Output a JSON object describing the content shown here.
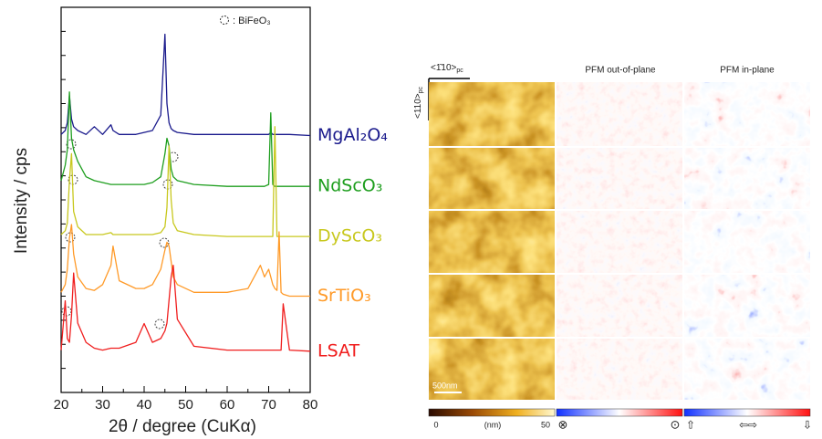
{
  "chart_data": {
    "type": "line",
    "xlabel": "2θ / degree (CuKα)",
    "ylabel": "Intensity / cps",
    "legend_note": ": BiFeO₃",
    "xlim": [
      20,
      80
    ],
    "xticks": [
      20,
      30,
      40,
      50,
      60,
      70,
      80
    ],
    "ylim": [
      0,
      100
    ],
    "x": [
      20,
      21,
      21.5,
      22,
      22.5,
      23,
      24,
      26,
      28,
      30,
      32,
      32.5,
      34,
      38,
      40,
      42,
      44,
      45,
      45.5,
      46,
      46.5,
      47,
      48,
      52,
      60,
      65,
      67,
      68,
      69,
      70,
      70.5,
      71,
      71.5,
      72,
      72.5,
      73,
      73.5,
      75,
      80
    ],
    "series": [
      {
        "name": "MgAl₂O₄",
        "color": "#1a1a8c",
        "values": [
          67,
          68,
          70,
          77,
          71,
          69,
          68,
          67,
          69,
          67,
          69.5,
          68,
          67,
          67,
          67.5,
          68,
          72,
          93,
          75,
          70,
          68.5,
          68,
          67.5,
          67,
          67,
          67,
          67,
          67,
          67,
          67,
          67.5,
          67,
          67,
          67,
          67,
          67,
          67,
          67,
          66.7
        ]
      },
      {
        "name": "NdScO₃",
        "color": "#1e9e1e",
        "values": [
          55,
          59,
          63,
          78,
          66,
          63,
          60,
          56,
          55,
          54.5,
          54,
          54,
          54,
          54,
          54,
          54.5,
          56,
          62,
          66,
          64,
          58,
          56,
          55,
          54,
          53.5,
          53.5,
          53.5,
          53.5,
          53.5,
          54,
          72.6,
          54,
          53.5,
          53.5,
          53.5,
          53.5,
          53.5,
          53.5,
          53.5
        ]
      },
      {
        "name": "DyScO₃",
        "color": "#c8c81e",
        "values": [
          41,
          42,
          44,
          55,
          62,
          47,
          43,
          41,
          41,
          41,
          41.5,
          41,
          41,
          41,
          41,
          41,
          41.5,
          43,
          48,
          64,
          50,
          44,
          42,
          41,
          40.5,
          40.5,
          40.5,
          40.5,
          40.5,
          40.5,
          40.5,
          40.5,
          69,
          40.5,
          40.5,
          40.5,
          40.5,
          40.5,
          40.5
        ]
      },
      {
        "name": "SrTiO₃",
        "color": "#ff9a28",
        "values": [
          26,
          28,
          32,
          40,
          43.6,
          36,
          30,
          27,
          26.5,
          28,
          33,
          38,
          29,
          27,
          27,
          28,
          32,
          37,
          39,
          38,
          34,
          30,
          28,
          26,
          26,
          27,
          31,
          33,
          30,
          32,
          30,
          28,
          27,
          26.5,
          41.7,
          26,
          25.5,
          25,
          25
        ]
      },
      {
        "name": "LSAT",
        "color": "#f01e1e",
        "values": [
          11,
          23.8,
          14,
          13,
          20,
          31,
          18,
          13,
          11.5,
          11,
          11.5,
          11.5,
          11.5,
          13,
          17.9,
          13,
          14,
          16,
          18,
          24,
          30,
          33,
          19,
          12,
          11,
          11,
          11,
          11,
          11,
          11,
          11,
          11,
          11,
          11,
          11,
          11,
          23,
          11,
          10.7
        ]
      }
    ]
  },
  "pfm_figure": {
    "direction_x": {
      "text": "<1̄10>",
      "sub": "pc"
    },
    "direction_y": {
      "text": "<110>",
      "sub": "pc"
    },
    "columns": [
      "PFM out-of-plane",
      "PFM in-plane"
    ],
    "scale_bar": "500nm",
    "height_scale": {
      "min": 0,
      "unit": "(nm)",
      "max": 50
    },
    "out_of_plane_scale": [
      "⊗",
      "⊙"
    ],
    "in_plane_scale": [
      "⇧",
      "⇦⇨",
      "⇩"
    ]
  }
}
